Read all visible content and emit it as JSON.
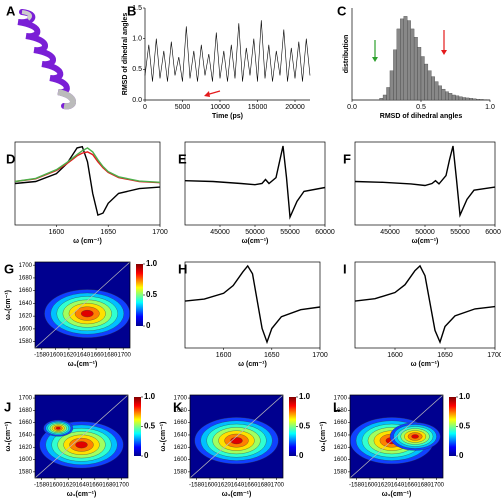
{
  "chart_data": [
    {
      "panel": "A",
      "type": "image"
    },
    {
      "panel": "B",
      "type": "line",
      "xlabel": "Time (ps)",
      "ylabel": "RMSD of dihedral angles",
      "x": [
        0,
        500,
        1000,
        1500,
        2000,
        2500,
        3000,
        3500,
        4000,
        4500,
        5000,
        5500,
        6000,
        6500,
        7000,
        7500,
        8000,
        8500,
        9000,
        9500,
        10000,
        10500,
        11000,
        11500,
        12000,
        12500,
        13000,
        13500,
        14000,
        14500,
        15000,
        15500,
        16000,
        16500,
        17000,
        17500,
        18000,
        18500,
        19000,
        19500,
        20000,
        20500,
        21000,
        21500,
        22000
      ],
      "series": [
        {
          "color": "#000000",
          "values": [
            0.4,
            0.9,
            0.3,
            1.0,
            0.35,
            0.8,
            0.3,
            0.95,
            0.4,
            0.7,
            0.3,
            1.2,
            0.35,
            0.8,
            0.3,
            0.9,
            0.4,
            0.75,
            0.3,
            1.1,
            0.35,
            0.8,
            0.3,
            0.9,
            0.35,
            1.25,
            0.3,
            0.85,
            0.4,
            1.0,
            0.3,
            1.3,
            0.35,
            0.9,
            0.3,
            0.8,
            0.4,
            1.15,
            0.3,
            0.85,
            0.35,
            0.95,
            0.3,
            1.0,
            0.4
          ]
        }
      ],
      "xlim": [
        0,
        22000
      ],
      "xticks": [
        0,
        5000,
        10000,
        15000,
        20000
      ],
      "ylim": [
        0,
        1.5
      ],
      "yticks": [
        {
          "value": 0,
          "label": "0.0"
        },
        {
          "value": 0.5,
          "label": "0.5"
        },
        {
          "value": 1,
          "label": "1.0"
        },
        {
          "value": 1.5,
          "label": "1.5"
        }
      ]
    },
    {
      "panel": "C",
      "type": "histogram",
      "xlabel": "RMSD of dihedral angles",
      "ylabel": "distribution",
      "color": "#888888",
      "bins": [
        0.2,
        0.225,
        0.25,
        0.275,
        0.3,
        0.325,
        0.35,
        0.375,
        0.4,
        0.425,
        0.45,
        0.475,
        0.5,
        0.525,
        0.55,
        0.575,
        0.6,
        0.625,
        0.65,
        0.675,
        0.7,
        0.725,
        0.75,
        0.775,
        0.8,
        0.825,
        0.85,
        0.875,
        0.9,
        0.925,
        0.95,
        0.975,
        1.0
      ],
      "values": [
        0.02,
        0.06,
        0.15,
        0.35,
        0.6,
        0.85,
        0.97,
        1.0,
        0.95,
        0.85,
        0.75,
        0.63,
        0.52,
        0.43,
        0.35,
        0.28,
        0.22,
        0.17,
        0.13,
        0.1,
        0.08,
        0.06,
        0.05,
        0.04,
        0.03,
        0.025,
        0.02,
        0.015,
        0.01,
        0.008,
        0.005,
        0.003
      ],
      "xlim": [
        0,
        1
      ],
      "xticks": [
        {
          "value": 0,
          "label": "0.0"
        },
        {
          "value": 0.5,
          "label": "0.5"
        },
        {
          "value": 1,
          "label": "1.0"
        }
      ],
      "ylim": [
        0,
        1.1
      ]
    },
    {
      "panel": "D",
      "type": "line",
      "xlabel": "ω (cm⁻¹)",
      "x": [
        1560,
        1580,
        1600,
        1610,
        1615,
        1620,
        1625,
        1630,
        1635,
        1640,
        1645,
        1650,
        1660,
        1680,
        1700
      ],
      "series": [
        {
          "color": "#000000",
          "values": [
            0.05,
            0.1,
            0.3,
            0.55,
            0.75,
            0.95,
            0.98,
            0.6,
            -0.2,
            -0.75,
            -0.7,
            -0.45,
            -0.2,
            -0.08,
            -0.04
          ]
        },
        {
          "color": "#e41a1c",
          "values": [
            0.1,
            0.17,
            0.38,
            0.55,
            0.65,
            0.75,
            0.82,
            0.85,
            0.78,
            0.6,
            0.45,
            0.33,
            0.2,
            0.1,
            0.07
          ]
        },
        {
          "color": "#4daf4a",
          "values": [
            0.1,
            0.18,
            0.4,
            0.58,
            0.68,
            0.78,
            0.88,
            0.95,
            0.85,
            0.65,
            0.48,
            0.35,
            0.22,
            0.11,
            0.08
          ]
        }
      ],
      "xlim": [
        1560,
        1700
      ],
      "xticks": [
        1600,
        1650,
        1700
      ],
      "ylim": [
        -1,
        1.1
      ]
    },
    {
      "panel": "E",
      "type": "line",
      "xlabel": "ω(cm⁻¹)",
      "x": [
        40000,
        44000,
        48000,
        50000,
        51000,
        51500,
        52000,
        53000,
        53500,
        54000,
        54500,
        55000,
        56000,
        57000,
        60000
      ],
      "series": [
        {
          "color": "#000000",
          "values": [
            0.12,
            0.1,
            0.05,
            0.02,
            0.05,
            0.15,
            0.05,
            0.2,
            0.6,
            1.0,
            0.2,
            -0.8,
            -0.4,
            -0.15,
            -0.05
          ]
        }
      ],
      "xlim": [
        40000,
        60000
      ],
      "xticks": [
        45000,
        50000,
        55000,
        60000
      ],
      "ylim": [
        -1,
        1.1
      ]
    },
    {
      "panel": "F",
      "type": "line",
      "xlabel": "ω(cm⁻¹)",
      "x": [
        40000,
        44000,
        48000,
        50000,
        51000,
        51500,
        52000,
        53000,
        53500,
        54000,
        54500,
        55000,
        56000,
        57000,
        60000
      ],
      "series": [
        {
          "color": "#000000",
          "values": [
            0.1,
            0.08,
            0.04,
            0.0,
            0.05,
            0.12,
            0.04,
            0.25,
            0.65,
            1.0,
            0.15,
            -0.75,
            -0.35,
            -0.12,
            -0.04
          ]
        }
      ],
      "xlim": [
        40000,
        60000
      ],
      "xticks": [
        45000,
        50000,
        55000,
        60000
      ],
      "ylim": [
        -1,
        1.1
      ]
    },
    {
      "panel": "G",
      "type": "contour",
      "xlabel": "ω₁(cm⁻¹)",
      "ylabel": "ω₃(cm⁻¹)",
      "xlim": [
        -1570,
        -1710
      ],
      "xticks": [
        -1580,
        -1600,
        -1620,
        -1640,
        -1660,
        -1680,
        -1700
      ],
      "ylim": [
        1570,
        1705
      ],
      "yticks": [
        1580,
        1600,
        1620,
        1640,
        1660,
        1680,
        1700
      ],
      "cticks": [
        0,
        0.5,
        {
          "value": 1,
          "label": "1.0"
        }
      ]
    },
    {
      "panel": "H",
      "type": "line",
      "xlabel": "ω (cm⁻¹)",
      "x": [
        1560,
        1580,
        1600,
        1610,
        1620,
        1625,
        1630,
        1640,
        1645,
        1650,
        1660,
        1680,
        1700
      ],
      "series": [
        {
          "color": "#000000",
          "values": [
            0.1,
            0.15,
            0.3,
            0.5,
            0.85,
            1.0,
            0.8,
            -0.6,
            -0.95,
            -0.6,
            -0.3,
            -0.12,
            -0.05
          ]
        }
      ],
      "xlim": [
        1560,
        1700
      ],
      "xticks": [
        1600,
        1650,
        1700
      ],
      "ylim": [
        -1.1,
        1.1
      ]
    },
    {
      "panel": "I",
      "type": "line",
      "xlabel": "ω (cm⁻¹)",
      "x": [
        1560,
        1580,
        1600,
        1610,
        1620,
        1625,
        1630,
        1640,
        1645,
        1650,
        1660,
        1680,
        1700
      ],
      "series": [
        {
          "color": "#000000",
          "values": [
            0.1,
            0.16,
            0.32,
            0.52,
            0.88,
            1.0,
            0.75,
            -0.65,
            -0.95,
            -0.55,
            -0.28,
            -0.1,
            -0.04
          ]
        }
      ],
      "xlim": [
        1560,
        1700
      ],
      "xticks": [
        1600,
        1650,
        1700
      ],
      "ylim": [
        -1.1,
        1.1
      ]
    },
    {
      "panel": "J",
      "type": "contour",
      "xlabel": "ω₁(cm⁻¹)",
      "ylabel": "ω₃(cm⁻¹)",
      "xlim": [
        -1570,
        -1710
      ],
      "xticks": [
        -1580,
        -1600,
        -1620,
        -1640,
        -1660,
        -1680,
        -1700
      ],
      "ylim": [
        1570,
        1705
      ],
      "yticks": [
        1580,
        1600,
        1620,
        1640,
        1660,
        1680,
        1700
      ],
      "cticks": [
        0,
        0.5,
        {
          "value": 1,
          "label": "1.0"
        }
      ]
    },
    {
      "panel": "K",
      "type": "contour",
      "xlabel": "ω₁(cm⁻¹)",
      "ylabel": "ω₃(cm⁻¹)",
      "xlim": [
        -1570,
        -1710
      ],
      "xticks": [
        -1580,
        -1600,
        -1620,
        -1640,
        -1660,
        -1680,
        -1700
      ],
      "ylim": [
        1570,
        1705
      ],
      "yticks": [
        1580,
        1600,
        1620,
        1640,
        1660,
        1680,
        1700
      ],
      "cticks": [
        0,
        0.5,
        {
          "value": 1,
          "label": "1.0"
        }
      ]
    },
    {
      "panel": "L",
      "type": "contour",
      "xlabel": "ω₁(cm⁻¹)",
      "ylabel": "ω₃(cm⁻¹)",
      "xlim": [
        -1570,
        -1710
      ],
      "xticks": [
        -1580,
        -1600,
        -1620,
        -1640,
        -1660,
        -1680,
        -1700
      ],
      "ylim": [
        1570,
        1705
      ],
      "yticks": [
        1580,
        1600,
        1620,
        1640,
        1660,
        1680,
        1700
      ],
      "cticks": [
        0,
        0.5,
        {
          "value": 1,
          "label": "1.0"
        }
      ]
    }
  ]
}
